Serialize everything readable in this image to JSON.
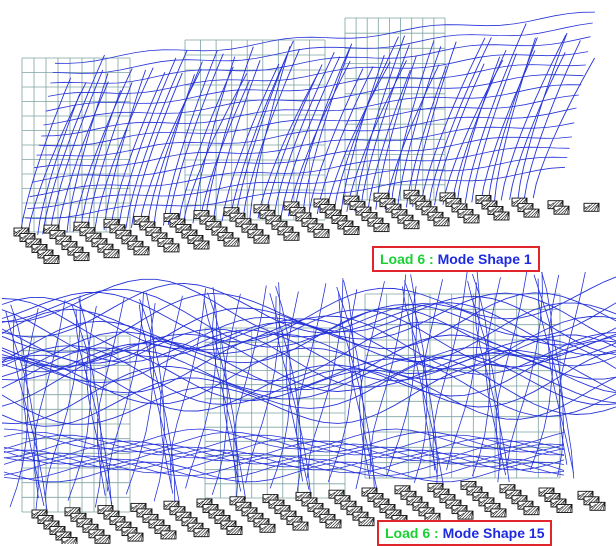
{
  "colors": {
    "deformed": "#2633d9",
    "undeformed": "#7ea3a3",
    "support": "#111111",
    "caption_border": "#e0262c",
    "caption_load": "#19d132",
    "caption_mode": "#1e2adf"
  },
  "panels": [
    {
      "caption_load": "Load 6 :",
      "caption_mode": "Mode Shape 1",
      "mode_number": 1
    },
    {
      "caption_load": "Load 6 :",
      "caption_mode": "Mode Shape 15",
      "mode_number": 15
    }
  ]
}
